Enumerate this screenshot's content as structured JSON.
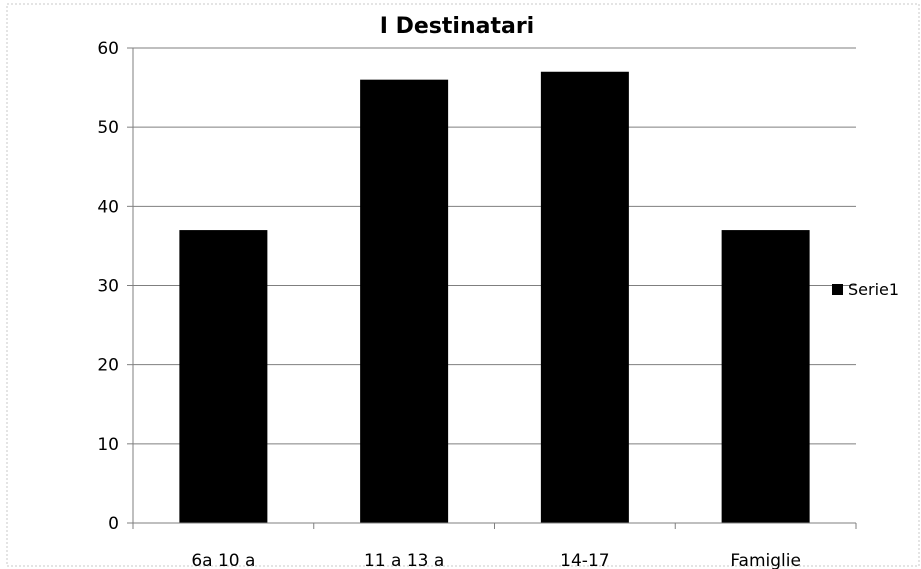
{
  "chart_data": {
    "type": "bar",
    "title": "I Destinatari",
    "xlabel": "",
    "ylabel": "",
    "categories": [
      "6a 10 a",
      "11 a 13 a",
      "14-17",
      "Famiglie"
    ],
    "series": [
      {
        "name": "Serie1",
        "values": [
          37,
          56,
          57,
          37
        ],
        "color": "#000000"
      }
    ],
    "ylim": [
      0,
      60
    ],
    "yticks": [
      0,
      10,
      20,
      30,
      40,
      50,
      60
    ],
    "grid": true,
    "legend_position": "right"
  }
}
